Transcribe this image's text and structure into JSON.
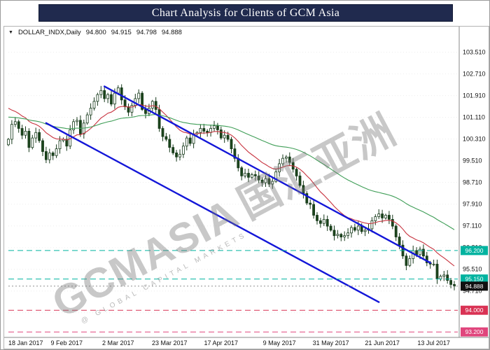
{
  "banner": {
    "title": "Chart Analysis for Clients of GCM Asia",
    "bg": "#202a4e",
    "fg": "#ffffff"
  },
  "chart_header": {
    "collapse_icon": "▼",
    "symbol_label": "DOLLAR_INDX,Daily",
    "open": "94.800",
    "high": "94.915",
    "low": "94.798",
    "close": "94.888"
  },
  "watermark": {
    "brand": "GCMASIA",
    "brand_cn": "国汇亚洲",
    "subtitle": "@ GLOBAL CAPITAL MARKETS"
  },
  "chart_data": {
    "type": "candlestick",
    "symbol": "DOLLAR_INDX",
    "timeframe": "Daily",
    "title": "Chart Analysis for Clients of GCM Asia",
    "price_range": [
      93.05,
      104.3
    ],
    "grid": "faint-horizontal",
    "legend_position": "none",
    "x_axis": {
      "labels": [
        {
          "text": "18 Jan 2017",
          "index": 0
        },
        {
          "text": "9 Feb 2017",
          "index": 17
        },
        {
          "text": "2 Mar 2017",
          "index": 32
        },
        {
          "text": "23 Mar 2017",
          "index": 47
        },
        {
          "text": "17 Apr 2017",
          "index": 62
        },
        {
          "text": "9 May 2017",
          "index": 79
        },
        {
          "text": "31 May 2017",
          "index": 94
        },
        {
          "text": "21 Jun 2017",
          "index": 109
        },
        {
          "text": "13 Jul 2017",
          "index": 124
        }
      ]
    },
    "y_axis": {
      "labels": [
        {
          "text": "103.510",
          "price": 103.51
        },
        {
          "text": "102.710",
          "price": 102.71
        },
        {
          "text": "101.910",
          "price": 101.91
        },
        {
          "text": "101.110",
          "price": 101.11
        },
        {
          "text": "100.310",
          "price": 100.31
        },
        {
          "text": "99.510",
          "price": 99.51
        },
        {
          "text": "98.710",
          "price": 98.71
        },
        {
          "text": "97.910",
          "price": 97.91
        },
        {
          "text": "97.110",
          "price": 97.11
        },
        {
          "text": "96.310",
          "price": 96.31
        },
        {
          "text": "95.510",
          "price": 95.51
        },
        {
          "text": "94.710",
          "price": 94.71
        },
        {
          "text": "93.910",
          "price": 93.91
        }
      ]
    },
    "first_open": 100.1,
    "closes": [
      100.3,
      100.85,
      100.95,
      100.7,
      100.45,
      100.6,
      100.0,
      100.35,
      100.55,
      100.25,
      99.85,
      99.55,
      99.8,
      99.7,
      99.95,
      100.25,
      100.3,
      100.05,
      100.65,
      100.95,
      101.0,
      100.5,
      100.9,
      101.2,
      101.45,
      101.7,
      101.95,
      102.1,
      101.8,
      101.95,
      101.6,
      102.0,
      102.2,
      101.75,
      101.5,
      101.3,
      101.55,
      101.8,
      102.0,
      101.4,
      101.25,
      101.45,
      101.7,
      101.4,
      100.7,
      100.4,
      100.3,
      100.0,
      99.8,
      99.65,
      99.75,
      100.05,
      100.35,
      100.15,
      100.5,
      100.55,
      100.7,
      100.6,
      100.55,
      100.7,
      100.8,
      100.65,
      100.35,
      100.45,
      100.3,
      99.95,
      99.6,
      99.25,
      98.95,
      99.05,
      98.9,
      99.0,
      98.95,
      98.8,
      98.7,
      98.85,
      98.65,
      98.75,
      99.1,
      99.4,
      99.6,
      99.65,
      99.45,
      99.2,
      98.95,
      98.6,
      98.3,
      97.95,
      97.9,
      97.5,
      97.3,
      97.2,
      97.35,
      97.1,
      96.95,
      96.75,
      96.8,
      96.7,
      96.75,
      96.85,
      97.05,
      96.95,
      97.1,
      96.9,
      96.95,
      97.0,
      97.3,
      97.45,
      97.55,
      97.4,
      97.5,
      97.35,
      97.1,
      96.7,
      96.4,
      96.0,
      95.65,
      95.9,
      96.2,
      96.05,
      96.25,
      96.0,
      95.75,
      95.7,
      95.7,
      95.15,
      95.25,
      95.3,
      95.1,
      94.95,
      94.89
    ],
    "candle_style": {
      "bull_fill": "#ffffff",
      "bear_fill": "#1c451c",
      "outline": "#16391a"
    },
    "moving_averages": [
      {
        "name": "ma-fast-line",
        "period": 16,
        "seed": 101.6,
        "color": "#c7323e"
      },
      {
        "name": "ma-slow-line",
        "period": 55,
        "seed": 101.15,
        "color": "#3f9e57"
      }
    ],
    "trendlines": [
      {
        "name": "trendline-upper",
        "from_index": 28,
        "from_price": 102.25,
        "to_index": 123,
        "to_price": 95.75,
        "color": "#1316d8",
        "width": 2.4
      },
      {
        "name": "trendline-lower",
        "from_index": 11,
        "from_price": 100.9,
        "to_index": 108,
        "to_price": 94.3,
        "color": "#1316d8",
        "width": 2.4
      }
    ],
    "levels": [
      {
        "price": 96.2,
        "label": "96.200",
        "line_color": "#00b3a0",
        "box_color": "#00b3a0",
        "dash": "8,5"
      },
      {
        "price": 95.15,
        "label": "95.150",
        "line_color": "#00b3a0",
        "box_color": "#00b3a0",
        "dash": "8,5"
      },
      {
        "price": 94.888,
        "label": "94.888",
        "line_color": "#909090",
        "box_color": "#101010",
        "dash": "2,3",
        "current": true
      },
      {
        "price": 94.0,
        "label": "94.000",
        "line_color": "#d93254",
        "box_color": "#d93254",
        "dash": "8,5"
      },
      {
        "price": 93.2,
        "label": "93.200",
        "line_color": "#e0457c",
        "box_color": "#e0457c",
        "dash": "8,5"
      }
    ]
  }
}
